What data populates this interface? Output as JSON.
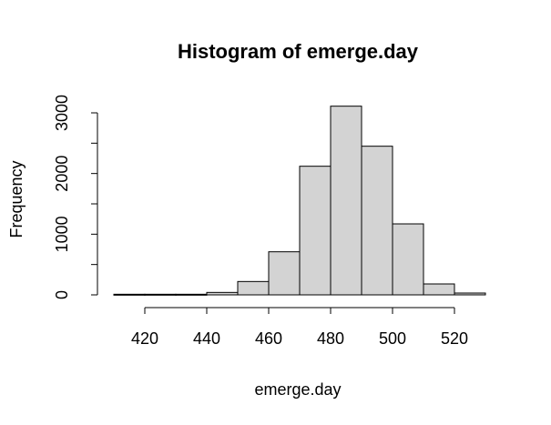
{
  "chart_data": {
    "type": "bar",
    "title": "Histogram of emerge.day",
    "xlabel": "emerge.day",
    "ylabel": "Frequency",
    "bins": [
      {
        "from": 410,
        "to": 420,
        "count": 10
      },
      {
        "from": 420,
        "to": 430,
        "count": 10
      },
      {
        "from": 430,
        "to": 440,
        "count": 10
      },
      {
        "from": 440,
        "to": 450,
        "count": 40
      },
      {
        "from": 450,
        "to": 460,
        "count": 220
      },
      {
        "from": 460,
        "to": 470,
        "count": 710
      },
      {
        "from": 470,
        "to": 480,
        "count": 2120
      },
      {
        "from": 480,
        "to": 490,
        "count": 3110
      },
      {
        "from": 490,
        "to": 500,
        "count": 2450
      },
      {
        "from": 500,
        "to": 510,
        "count": 1170
      },
      {
        "from": 510,
        "to": 520,
        "count": 180
      },
      {
        "from": 520,
        "to": 530,
        "count": 30
      }
    ],
    "x_ticks": [
      420,
      440,
      460,
      480,
      500,
      520
    ],
    "y_ticks": [
      0,
      1000,
      2000,
      3000
    ],
    "y_minor_ticks": [
      500,
      1500,
      2500
    ],
    "xlim": [
      410,
      530
    ],
    "bar_color": "#d3d3d3",
    "bar_border_color": "#000000",
    "grid": false,
    "legend": "none"
  }
}
